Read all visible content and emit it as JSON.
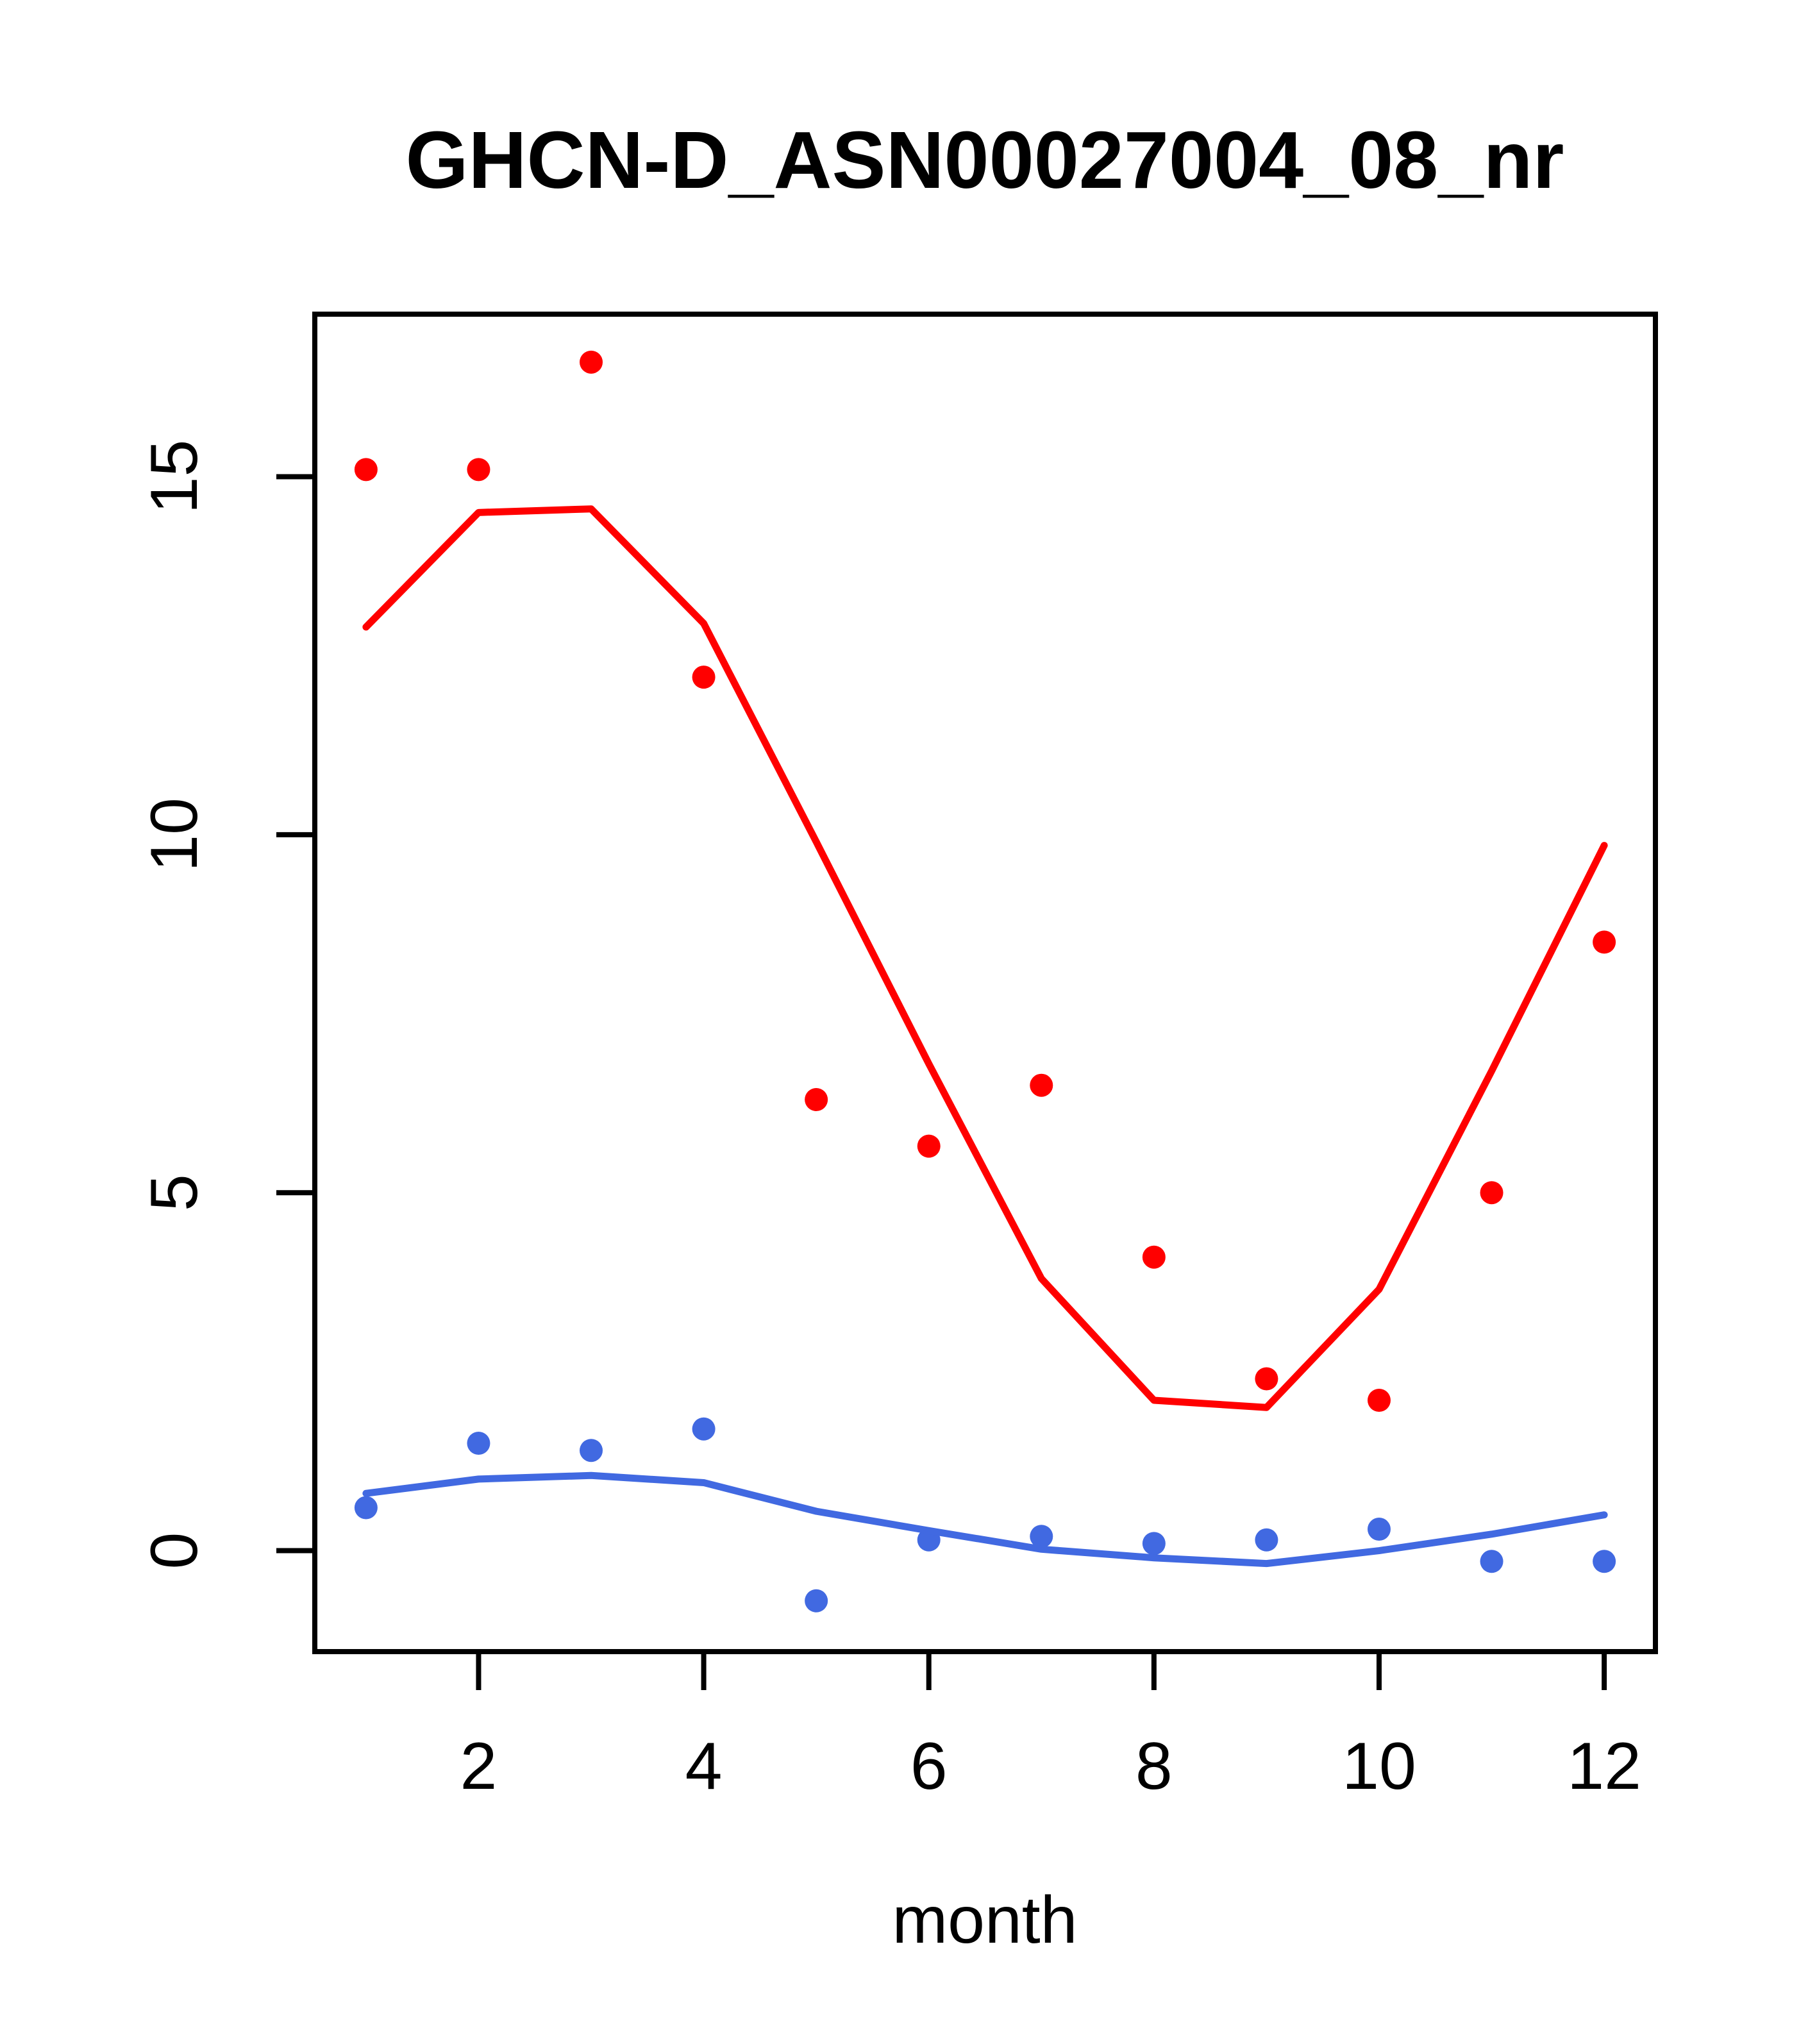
{
  "figure": {
    "title": "GHCN-D_ASN00027004_08_nr",
    "xlabel": "month"
  },
  "chart_data": {
    "type": "scatter",
    "title": "GHCN-D_ASN00027004_08_nr",
    "xlabel": "month",
    "ylabel": "",
    "x": [
      1,
      2,
      3,
      4,
      5,
      6,
      7,
      8,
      9,
      10,
      11,
      12
    ],
    "x_ticks": [
      2,
      4,
      6,
      8,
      10,
      12
    ],
    "y_ticks": [
      0,
      5,
      10,
      15
    ],
    "xlim": [
      0.545,
      12.455
    ],
    "ylim": [
      -1.41,
      17.27
    ],
    "grid": false,
    "legend_position": "none",
    "colors": {
      "red": "#FF0000",
      "blue": "#4169E1",
      "axis": "#000000"
    },
    "series": [
      {
        "name": "red-points",
        "kind": "points",
        "color": "#FF0000",
        "values": [
          15.1,
          15.1,
          16.6,
          12.2,
          6.3,
          5.65,
          6.5,
          4.1,
          2.4,
          2.1,
          5.0,
          8.5
        ]
      },
      {
        "name": "red-line",
        "kind": "line",
        "color": "#FF0000",
        "values": [
          12.9,
          14.5,
          14.55,
          12.95,
          9.9,
          6.8,
          3.8,
          2.1,
          2.0,
          3.65,
          6.7,
          9.85
        ]
      },
      {
        "name": "blue-points",
        "kind": "points",
        "color": "#4169E1",
        "values": [
          0.6,
          1.5,
          1.4,
          1.7,
          -0.7,
          0.15,
          0.2,
          0.1,
          0.15,
          0.3,
          -0.15,
          -0.15
        ]
      },
      {
        "name": "blue-line",
        "kind": "line",
        "color": "#4169E1",
        "values": [
          0.8,
          1.0,
          1.05,
          0.95,
          0.55,
          0.28,
          0.02,
          -0.1,
          -0.18,
          0.0,
          0.23,
          0.5
        ]
      }
    ]
  }
}
